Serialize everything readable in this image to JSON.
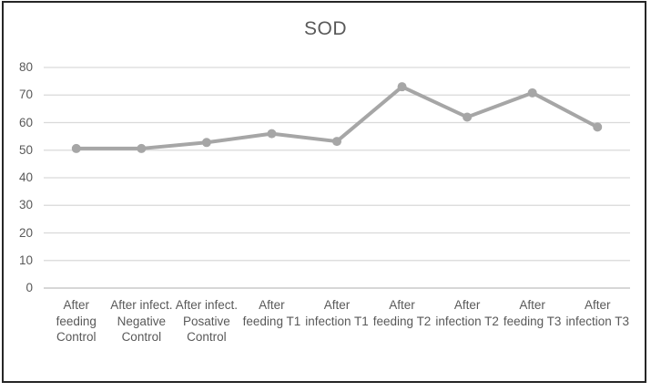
{
  "window": {
    "background": "#ffffff",
    "border_color": "#262626"
  },
  "chart_data": {
    "type": "line",
    "title": "SOD",
    "categories": [
      "After feeding Control",
      "After infect. Negative Control",
      "After infect. Posative Control",
      "After feeding T1",
      "After infection T1",
      "After feeding T2",
      "After infection T2",
      "After feeding T3",
      "After infection T3"
    ],
    "series": [
      {
        "name": "SOD",
        "values": [
          50.6,
          50.6,
          52.8,
          56.0,
          53.2,
          73.0,
          62.0,
          70.8,
          58.4
        ],
        "color": "#a6a6a6"
      }
    ],
    "xlabel": "",
    "ylabel": "",
    "ylim": [
      0,
      80
    ],
    "y_ticks": [
      0,
      10,
      20,
      30,
      40,
      50,
      60,
      70,
      80
    ],
    "grid": true,
    "legend_position": "none",
    "gridline_color": "#d9d9d9",
    "axis_line_color": "#bfbfbf",
    "text_color": "#595959",
    "marker": "circle"
  }
}
